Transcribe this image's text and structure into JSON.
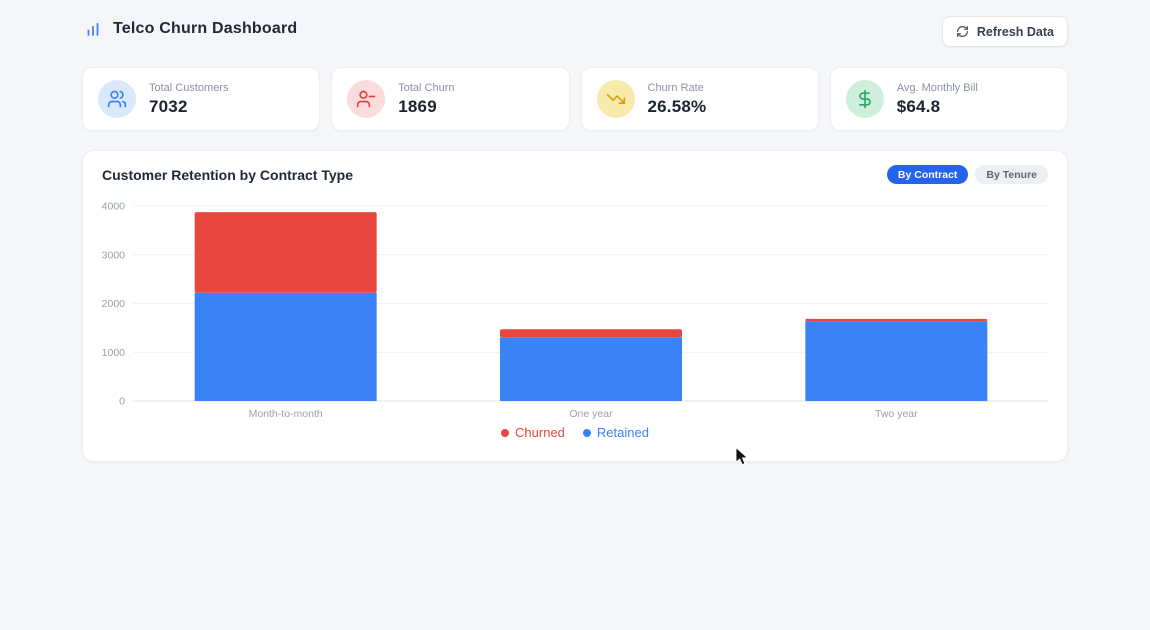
{
  "header": {
    "app_title": "Telco Churn Dashboard",
    "refresh_button": "Refresh Data"
  },
  "colors": {
    "page_bg": "#f5f6f8",
    "card_bg": "#ffffff",
    "accent_blue": "#2563eb",
    "bar_blue": "#3b82f6",
    "bar_red": "#e8463e",
    "axis_text": "#99a0ab",
    "gridline": "#f0f1f4",
    "baseline": "#e3e5ea"
  },
  "stat_cards": [
    {
      "label": "Total Customers",
      "value": "7032",
      "icon": "users-icon",
      "icon_color": "#3b82f6",
      "icon_bg": "#dbe7fb"
    },
    {
      "label": "Total Churn",
      "value": "1869",
      "icon": "user-minus-icon",
      "icon_color": "#e0443c",
      "icon_bg": "#fadcdc"
    },
    {
      "label": "Churn Rate",
      "value": "26.58%",
      "icon": "trending-down-icon",
      "icon_color": "#d4a10e",
      "icon_bg": "#f7eaaa"
    },
    {
      "label": "Avg. Monthly Bill",
      "value": "$64.8",
      "icon": "dollar-icon",
      "icon_color": "#2fa86a",
      "icon_bg": "#cdefdb"
    }
  ],
  "chart_card": {
    "title": "Customer Retention by Contract Type",
    "toggles": [
      {
        "label": "By Contract",
        "active": true
      },
      {
        "label": "By Tenure",
        "active": false
      }
    ]
  },
  "chart_data": {
    "type": "bar",
    "stacked": true,
    "title": "Customer Retention by Contract Type",
    "categories": [
      "Month-to-month",
      "One year",
      "Two year"
    ],
    "series": [
      {
        "name": "Churned",
        "color": "#e8463e",
        "values": [
          1655,
          166,
          48
        ]
      },
      {
        "name": "Retained",
        "color": "#3b82f6",
        "values": [
          2220,
          1307,
          1637
        ]
      }
    ],
    "xlabel": "",
    "ylabel": "",
    "ylim": [
      0,
      4000
    ],
    "yticks": [
      0,
      1000,
      2000,
      3000,
      4000
    ],
    "grid": true,
    "legend_position": "bottom"
  }
}
